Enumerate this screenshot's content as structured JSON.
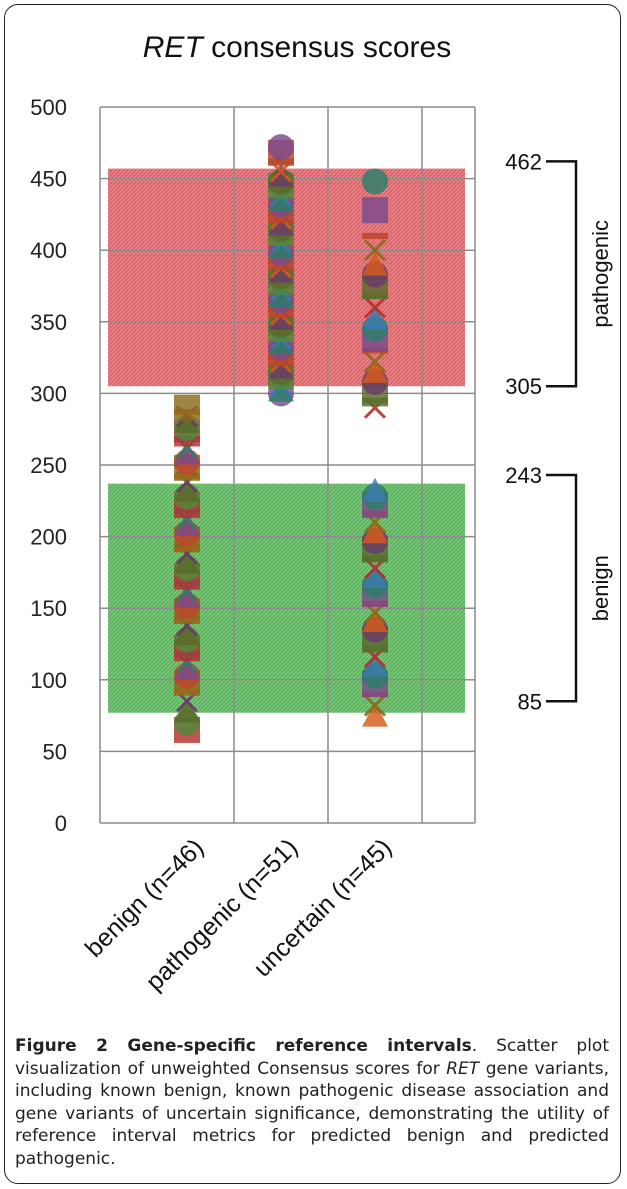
{
  "chart_data": {
    "type": "scatter",
    "title_gene": "RET",
    "title_rest": " consensus scores",
    "ylim": [
      0,
      500
    ],
    "y_ticks": [
      "0",
      "50",
      "100",
      "150",
      "200",
      "250",
      "300",
      "350",
      "400",
      "450",
      "500"
    ],
    "grid": true,
    "categories": [
      "benign (n=46)",
      "pathogenic (n=51)",
      "uncertain (n=45)"
    ],
    "bands": [
      {
        "name": "pathogenic",
        "y_from": 305,
        "y_to": 457,
        "color": "#e0404a"
      },
      {
        "name": "benign",
        "y_from": 77,
        "y_to": 237,
        "color": "#3aa83a"
      }
    ],
    "intervals": [
      {
        "name": "pathogenic",
        "low": 305,
        "high": 462,
        "low_label": "305",
        "high_label": "462"
      },
      {
        "name": "benign",
        "low": 85,
        "high": 243,
        "low_label": "85",
        "high_label": "243"
      }
    ],
    "series": [
      {
        "category": "benign (n=46)",
        "values": [
          65,
          70,
          78,
          85,
          92,
          98,
          103,
          108,
          112,
          118,
          122,
          128,
          132,
          138,
          142,
          148,
          152,
          158,
          162,
          168,
          172,
          178,
          182,
          188,
          192,
          198,
          202,
          208,
          212,
          218,
          222,
          228,
          232,
          238,
          242,
          248,
          252,
          258,
          262,
          268,
          272,
          276,
          280,
          284,
          287,
          290
        ]
      },
      {
        "category": "pathogenic (n=51)",
        "values": [
          300,
          302,
          305,
          308,
          312,
          315,
          318,
          322,
          325,
          328,
          332,
          335,
          338,
          342,
          345,
          348,
          352,
          355,
          358,
          362,
          365,
          368,
          372,
          375,
          378,
          382,
          385,
          388,
          392,
          395,
          398,
          402,
          405,
          408,
          412,
          415,
          418,
          422,
          425,
          428,
          432,
          435,
          438,
          442,
          445,
          448,
          452,
          455,
          462,
          468,
          472
        ]
      },
      {
        "category": "uncertain (n=45)",
        "values": [
          75,
          82,
          90,
          97,
          103,
          110,
          116,
          122,
          128,
          135,
          141,
          147,
          153,
          160,
          166,
          172,
          178,
          185,
          191,
          197,
          203,
          210,
          216,
          222,
          228,
          232,
          290,
          295,
          300,
          308,
          315,
          322,
          330,
          338,
          345,
          352,
          360,
          368,
          375,
          383,
          390,
          400,
          410,
          428,
          448
        ]
      }
    ]
  },
  "caption": {
    "label": "Figure 2 Gene-specific reference intervals",
    "text_1": ". Scatter plot visualization of unweighted Consensus scores for ",
    "gene": "RET",
    "text_2": " gene variants, including known benign, known pathogenic disease association and gene variants of uncertain significance, demonstrating the utility of reference interval metrics for predicted benign and predicted pathogenic."
  },
  "colors": {
    "grid": "#8c8c8c",
    "marker_palette": [
      "#b5302c",
      "#7a4a8c",
      "#d65a1a",
      "#4f8a3a",
      "#2a7f6a",
      "#8a6a1c",
      "#5a6a2a",
      "#3a7ab0",
      "#c0432a",
      "#6a3a6a"
    ]
  }
}
